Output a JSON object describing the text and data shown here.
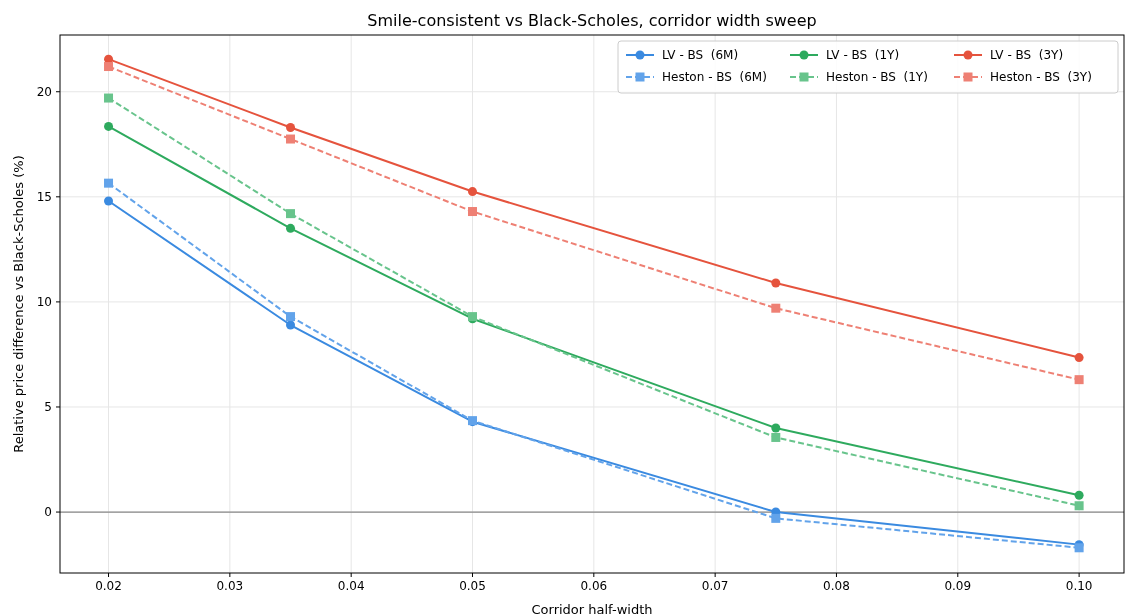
{
  "chart_data": {
    "type": "line",
    "title": "Smile-consistent vs Black-Scholes, corridor width sweep",
    "xlabel": "Corridor half-width",
    "ylabel": "Relative price difference vs Black-Scholes (%)",
    "x": [
      0.02,
      0.035,
      0.05,
      0.075,
      0.1
    ],
    "series": [
      {
        "name": "LV - BS  (6M)",
        "color": "#3a8ae0",
        "marker": "circle",
        "line_style": "solid",
        "values": [
          14.8,
          8.9,
          4.3,
          0.0,
          -1.55
        ]
      },
      {
        "name": "Heston - BS  (6M)",
        "color": "#62a3ea",
        "marker": "square",
        "line_style": "dashed",
        "values": [
          15.65,
          9.3,
          4.35,
          -0.3,
          -1.7
        ]
      },
      {
        "name": "LV - BS  (1Y)",
        "color": "#2eaa5e",
        "marker": "circle",
        "line_style": "solid",
        "values": [
          18.35,
          13.5,
          9.2,
          4.0,
          0.8
        ]
      },
      {
        "name": "Heston - BS  (1Y)",
        "color": "#68c48c",
        "marker": "square",
        "line_style": "dashed",
        "values": [
          19.7,
          14.2,
          9.3,
          3.55,
          0.3
        ]
      },
      {
        "name": "LV - BS  (3Y)",
        "color": "#e5533d",
        "marker": "circle",
        "line_style": "solid",
        "values": [
          21.55,
          18.3,
          15.25,
          10.9,
          7.35
        ]
      },
      {
        "name": "Heston - BS  (3Y)",
        "color": "#ee8074",
        "marker": "square",
        "line_style": "dashed",
        "values": [
          21.2,
          17.75,
          14.3,
          9.7,
          6.3
        ]
      }
    ],
    "xlim": [
      0.016,
      0.1037
    ],
    "ylim": [
      -2.9,
      22.7
    ],
    "xticks": [
      {
        "value": 0.02,
        "label": "0.02"
      },
      {
        "value": 0.03,
        "label": "0.03"
      },
      {
        "value": 0.04,
        "label": "0.04"
      },
      {
        "value": 0.05,
        "label": "0.05"
      },
      {
        "value": 0.06,
        "label": "0.06"
      },
      {
        "value": 0.07,
        "label": "0.07"
      },
      {
        "value": 0.08,
        "label": "0.08"
      },
      {
        "value": 0.09,
        "label": "0.09"
      },
      {
        "value": 0.1,
        "label": "0.10"
      }
    ],
    "yticks": [
      0,
      5,
      10,
      15,
      20
    ],
    "ref_lines": [
      {
        "axis": "y",
        "value": 0,
        "color": "#888888"
      }
    ],
    "grid": true,
    "legend": "top right"
  }
}
